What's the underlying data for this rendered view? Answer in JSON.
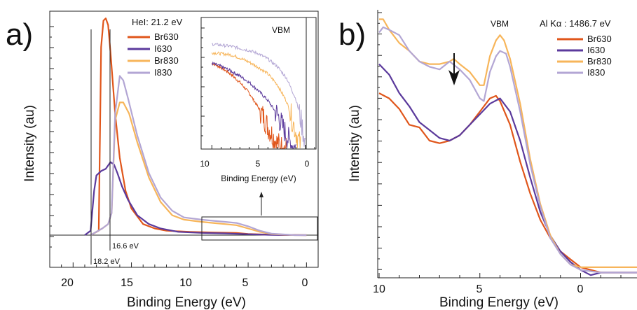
{
  "colors": {
    "Br630": "#e0561b",
    "I630": "#5b3a9c",
    "Br830": "#f7b55a",
    "I830": "#b3a6d4"
  },
  "panels": {
    "a": {
      "label": "a)",
      "source_text": "HeI: 21.2  eV",
      "xlabel": "Binding Energy (eV)",
      "ylabel": "Intensity (au)",
      "xticks": [
        "20",
        "15",
        "10",
        "5",
        "0"
      ],
      "legend": [
        "Br630",
        "I630",
        "Br830",
        "I830"
      ],
      "annotations": {
        "cutoff1": "18.2 eV",
        "cutoff2": "16.6 eV"
      },
      "inset": {
        "title": "VBM",
        "xlabel": "Binding Energy (eV)",
        "xticks": [
          "10",
          "5",
          "0"
        ]
      }
    },
    "b": {
      "label": "b)",
      "vbm_text": "VBM",
      "source_text": "Al Kα : 1486.7 eV",
      "xlabel": "Binding Energy (eV)",
      "ylabel": "Intensity (au)",
      "xticks": [
        "10",
        "5",
        "0"
      ],
      "legend": [
        "Br630",
        "I630",
        "Br830",
        "I830"
      ]
    }
  },
  "chart_data": [
    {
      "type": "line",
      "panel": "a",
      "xlim": [
        22,
        -1
      ],
      "xreversed": true,
      "ylim": [
        -0.1,
        1.0
      ],
      "series": [
        {
          "name": "Br630",
          "x": [
            18.5,
            17.8,
            17.6,
            17.4,
            17.2,
            17.0,
            16.8,
            16.4,
            16.0,
            15.5,
            15.0,
            14.0,
            13.0,
            12.0,
            10.0,
            8.0,
            6.0,
            5.0,
            3.0,
            0
          ],
          "y": [
            0.0,
            0.02,
            0.85,
            0.97,
            0.98,
            0.95,
            0.83,
            0.55,
            0.35,
            0.2,
            0.12,
            0.05,
            0.03,
            0.02,
            0.015,
            0.012,
            0.01,
            0.005,
            0.002,
            0.0
          ]
        },
        {
          "name": "I630",
          "x": [
            19.0,
            18.5,
            18.2,
            18.0,
            17.6,
            17.2,
            16.8,
            16.5,
            16.2,
            15.8,
            15.3,
            14.5,
            13.5,
            12.5,
            11.0,
            9.0,
            7.0,
            5.0,
            3.0,
            0
          ],
          "y": [
            0.0,
            0.02,
            0.2,
            0.27,
            0.29,
            0.3,
            0.33,
            0.32,
            0.28,
            0.22,
            0.16,
            0.09,
            0.05,
            0.03,
            0.015,
            0.01,
            0.008,
            0.004,
            0.001,
            0.0
          ]
        },
        {
          "name": "Br830",
          "x": [
            18.5,
            17.5,
            17.0,
            16.7,
            16.4,
            16.0,
            15.7,
            15.2,
            14.5,
            13.5,
            12.5,
            11.5,
            10.5,
            9.0,
            8.0,
            7.0,
            6.0,
            5.0,
            4.0,
            3.0,
            1.0,
            0
          ],
          "y": [
            0.0,
            0.03,
            0.05,
            0.1,
            0.52,
            0.6,
            0.6,
            0.55,
            0.42,
            0.26,
            0.15,
            0.09,
            0.07,
            0.06,
            0.055,
            0.05,
            0.045,
            0.03,
            0.015,
            0.005,
            0.0,
            0.0
          ]
        },
        {
          "name": "I830",
          "x": [
            18.5,
            17.5,
            17.0,
            16.7,
            16.4,
            16.0,
            15.7,
            15.3,
            14.5,
            13.5,
            12.5,
            11.5,
            10.5,
            9.0,
            8.0,
            7.0,
            6.0,
            5.0,
            4.0,
            3.0,
            1.0,
            0
          ],
          "y": [
            0.0,
            0.03,
            0.05,
            0.1,
            0.55,
            0.72,
            0.7,
            0.62,
            0.45,
            0.28,
            0.17,
            0.11,
            0.08,
            0.07,
            0.065,
            0.06,
            0.055,
            0.04,
            0.02,
            0.007,
            0.0,
            0.0
          ]
        }
      ],
      "vertical_lines": [
        18.2,
        16.6,
        0
      ]
    },
    {
      "type": "line",
      "panel": "a-inset",
      "title": "VBM",
      "xlabel": "Binding Energy (eV)",
      "xlim": [
        11,
        -1
      ],
      "xreversed": true,
      "yscale": "log",
      "ylim": [
        0,
        1
      ],
      "series": [
        {
          "name": "Br630",
          "x": [
            10,
            9,
            8,
            7,
            6,
            5,
            4.5,
            4,
            3.5,
            3,
            2.5,
            2
          ],
          "y": [
            0.8,
            0.76,
            0.7,
            0.62,
            0.52,
            0.38,
            0.3,
            0.2,
            0.12,
            0.05,
            0.01,
            0.0
          ]
        },
        {
          "name": "I630",
          "x": [
            10,
            9,
            8,
            7,
            6,
            5,
            4,
            3,
            2.5,
            2,
            1.5,
            1
          ],
          "y": [
            0.8,
            0.77,
            0.73,
            0.68,
            0.62,
            0.54,
            0.45,
            0.32,
            0.22,
            0.12,
            0.04,
            0.0
          ]
        },
        {
          "name": "Br830",
          "x": [
            10,
            9,
            8,
            7,
            6,
            5,
            4,
            3,
            2,
            1.5,
            1,
            0.5
          ],
          "y": [
            0.9,
            0.89,
            0.88,
            0.85,
            0.81,
            0.76,
            0.7,
            0.6,
            0.44,
            0.3,
            0.15,
            0.02
          ]
        },
        {
          "name": "I830",
          "x": [
            10,
            9,
            8,
            7,
            6,
            5,
            4,
            3,
            2,
            1,
            0.5,
            0
          ],
          "y": [
            0.98,
            0.97,
            0.96,
            0.94,
            0.92,
            0.89,
            0.84,
            0.77,
            0.66,
            0.46,
            0.28,
            0.05
          ]
        }
      ]
    },
    {
      "type": "line",
      "panel": "b",
      "xlim": [
        10,
        -2.8
      ],
      "xreversed": true,
      "ylim": [
        0,
        1
      ],
      "series": [
        {
          "name": "Br630",
          "x": [
            10,
            9.5,
            9.0,
            8.5,
            8.0,
            7.5,
            7.0,
            6.5,
            6.0,
            5.5,
            5.0,
            4.5,
            4.2,
            4.0,
            3.5,
            3.0,
            2.5,
            2.0,
            1.5,
            1.0,
            0.5,
            0,
            -0.5,
            -1.0,
            -2.0,
            -2.8
          ],
          "y": [
            0.7,
            0.68,
            0.64,
            0.58,
            0.57,
            0.52,
            0.51,
            0.52,
            0.54,
            0.58,
            0.63,
            0.68,
            0.69,
            0.67,
            0.58,
            0.44,
            0.32,
            0.22,
            0.15,
            0.1,
            0.07,
            0.04,
            0.03,
            0.02,
            0.02,
            0.02
          ]
        },
        {
          "name": "I630",
          "x": [
            10,
            9.5,
            9.0,
            8.5,
            8.0,
            7.5,
            7.0,
            6.5,
            6.0,
            5.5,
            5.0,
            4.5,
            4.0,
            3.5,
            3.0,
            2.5,
            2.0,
            1.5,
            1.0,
            0.5,
            0,
            -0.5,
            -1.0,
            -2.0,
            -2.8
          ],
          "y": [
            0.81,
            0.77,
            0.7,
            0.65,
            0.59,
            0.56,
            0.53,
            0.52,
            0.54,
            0.58,
            0.62,
            0.66,
            0.68,
            0.63,
            0.52,
            0.38,
            0.25,
            0.16,
            0.1,
            0.06,
            0.03,
            0.01,
            0.02,
            0.02,
            0.02
          ]
        },
        {
          "name": "Br830",
          "x": [
            10,
            9.8,
            9.5,
            9.0,
            8.5,
            8.0,
            7.5,
            7.0,
            6.5,
            6.3,
            6.0,
            5.5,
            5.0,
            4.8,
            4.5,
            4.2,
            4.0,
            3.8,
            3.5,
            3.0,
            2.5,
            2.0,
            1.5,
            1.0,
            0.5,
            0,
            -1.0,
            -2.0,
            -2.8
          ],
          "y": [
            0.98,
            0.98,
            0.94,
            0.89,
            0.86,
            0.82,
            0.81,
            0.81,
            0.82,
            0.83,
            0.81,
            0.78,
            0.73,
            0.73,
            0.84,
            0.9,
            0.92,
            0.9,
            0.83,
            0.66,
            0.45,
            0.28,
            0.16,
            0.09,
            0.05,
            0.04,
            0.04,
            0.04,
            0.04
          ]
        },
        {
          "name": "I830",
          "x": [
            10,
            9.8,
            9.5,
            9.0,
            8.5,
            8.0,
            7.5,
            7.0,
            6.5,
            6.0,
            5.5,
            5.0,
            4.8,
            4.5,
            4.2,
            4.0,
            3.7,
            3.5,
            3.0,
            2.5,
            2.0,
            1.5,
            1.0,
            0.5,
            0,
            -1.0,
            -2.0,
            -2.8
          ],
          "y": [
            0.93,
            0.95,
            0.94,
            0.92,
            0.86,
            0.82,
            0.8,
            0.79,
            0.82,
            0.79,
            0.75,
            0.68,
            0.67,
            0.78,
            0.84,
            0.86,
            0.85,
            0.8,
            0.63,
            0.43,
            0.27,
            0.15,
            0.09,
            0.05,
            0.03,
            0.02,
            0.02,
            0.02
          ]
        }
      ],
      "annotations": [
        {
          "type": "arrow",
          "x": 6.4
        }
      ]
    }
  ]
}
